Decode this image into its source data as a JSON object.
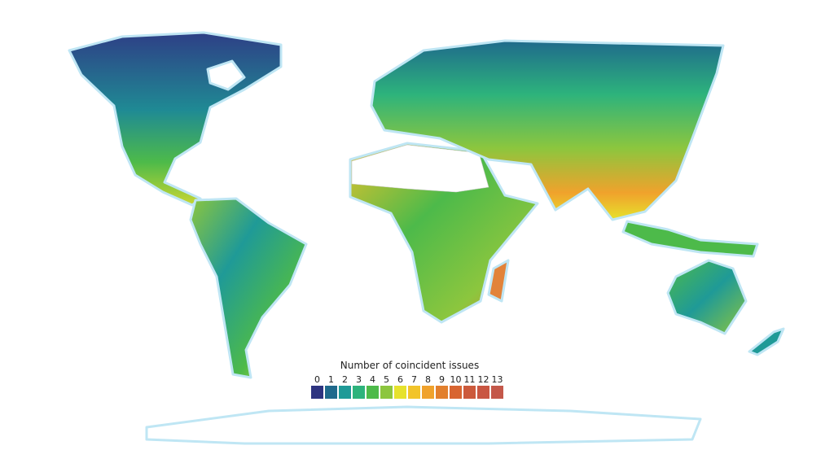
{
  "legend": {
    "title": "Number of coincident issues",
    "items": [
      {
        "label": 0,
        "color": "#2e3480"
      },
      {
        "label": 1,
        "color": "#1f6a8c"
      },
      {
        "label": 2,
        "color": "#1f9a97"
      },
      {
        "label": 3,
        "color": "#2db37c"
      },
      {
        "label": 4,
        "color": "#4dba4a"
      },
      {
        "label": 5,
        "color": "#8cc63e"
      },
      {
        "label": 6,
        "color": "#e6e22c"
      },
      {
        "label": 7,
        "color": "#f2c42a"
      },
      {
        "label": 8,
        "color": "#f0a22c"
      },
      {
        "label": 9,
        "color": "#e27f2d"
      },
      {
        "label": 10,
        "color": "#d86531"
      },
      {
        "label": 11,
        "color": "#cc5a3c"
      },
      {
        "label": 12,
        "color": "#c95642"
      },
      {
        "label": 13,
        "color": "#c4584a"
      }
    ]
  }
}
